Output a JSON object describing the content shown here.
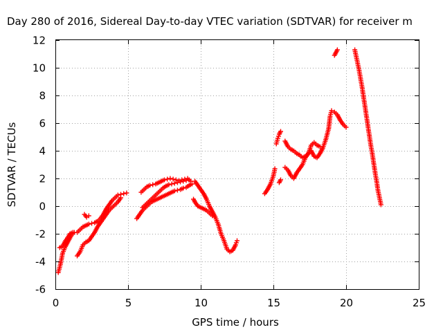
{
  "chart_data": {
    "type": "scatter",
    "title": "Day 280 of 2016, Sidereal Day-to-day VTEC variation (SDTVAR) for receiver m",
    "xlabel": "GPS time / hours",
    "ylabel": "SDTVAR / TECUs",
    "xlim": [
      0,
      25
    ],
    "ylim": [
      -6,
      12
    ],
    "xticks": [
      "0",
      "5",
      "10",
      "15",
      "20",
      "25"
    ],
    "yticks": [
      "-6",
      "-4",
      "-2",
      "0",
      "2",
      "4",
      "6",
      "8",
      "10",
      "12"
    ],
    "grid": true,
    "marker": "plus",
    "color": "#ff0000",
    "series": [
      {
        "name": "SDTVAR",
        "segments": [
          [
            [
              0.2,
              -4.8
            ],
            [
              0.35,
              -4.2
            ],
            [
              0.5,
              -3.4
            ],
            [
              0.7,
              -2.9
            ],
            [
              0.9,
              -2.5
            ],
            [
              1.1,
              -2.1
            ],
            [
              1.3,
              -1.9
            ],
            [
              1.5,
              -1.9
            ],
            [
              1.7,
              -1.7
            ],
            [
              1.9,
              -1.5
            ],
            [
              2.1,
              -1.4
            ],
            [
              2.3,
              -1.3
            ],
            [
              2.5,
              -1.25
            ],
            [
              2.7,
              -1.2
            ],
            [
              2.9,
              -1.1
            ],
            [
              3.1,
              -0.9
            ],
            [
              3.3,
              -0.6
            ],
            [
              3.5,
              -0.2
            ],
            [
              3.7,
              0.1
            ],
            [
              3.9,
              0.4
            ],
            [
              4.1,
              0.6
            ],
            [
              4.3,
              0.8
            ],
            [
              4.5,
              0.85
            ],
            [
              4.7,
              0.9
            ],
            [
              4.9,
              0.95
            ]
          ],
          [
            [
              0.3,
              -3.0
            ],
            [
              0.5,
              -2.9
            ],
            [
              0.7,
              -2.5
            ],
            [
              0.9,
              -2.2
            ],
            [
              1.0,
              -2.0
            ],
            [
              1.2,
              -1.9
            ]
          ],
          [
            [
              2.0,
              -0.6
            ],
            [
              2.15,
              -0.8
            ],
            [
              2.3,
              -0.7
            ]
          ],
          [
            [
              1.5,
              -3.6
            ],
            [
              1.7,
              -3.3
            ],
            [
              1.9,
              -2.8
            ],
            [
              2.1,
              -2.6
            ],
            [
              2.3,
              -2.5
            ],
            [
              2.5,
              -2.2
            ],
            [
              2.7,
              -1.9
            ],
            [
              2.9,
              -1.5
            ],
            [
              3.1,
              -1.2
            ],
            [
              3.3,
              -0.9
            ],
            [
              3.5,
              -0.6
            ],
            [
              3.7,
              -0.3
            ],
            [
              3.9,
              -0.1
            ],
            [
              4.1,
              0.1
            ],
            [
              4.3,
              0.3
            ],
            [
              4.5,
              0.6
            ]
          ],
          [
            [
              5.6,
              -0.9
            ],
            [
              5.8,
              -0.6
            ],
            [
              6.0,
              -0.3
            ],
            [
              6.2,
              -0.1
            ],
            [
              6.4,
              0.1
            ],
            [
              6.6,
              0.3
            ],
            [
              6.8,
              0.4
            ],
            [
              7.0,
              0.5
            ],
            [
              7.2,
              0.6
            ],
            [
              7.4,
              0.7
            ],
            [
              7.6,
              0.8
            ],
            [
              7.8,
              0.9
            ],
            [
              8.0,
              1.0
            ],
            [
              8.2,
              1.1
            ],
            [
              8.4,
              1.15
            ],
            [
              8.6,
              1.2
            ],
            [
              8.8,
              1.3
            ],
            [
              9.0,
              1.35
            ],
            [
              9.2,
              1.5
            ],
            [
              9.4,
              1.6
            ]
          ],
          [
            [
              6.0,
              -0.1
            ],
            [
              6.2,
              0.1
            ],
            [
              6.4,
              0.3
            ],
            [
              6.6,
              0.5
            ],
            [
              6.8,
              0.7
            ],
            [
              7.0,
              0.9
            ],
            [
              7.2,
              1.1
            ],
            [
              7.4,
              1.3
            ],
            [
              7.6,
              1.45
            ],
            [
              7.8,
              1.55
            ],
            [
              8.0,
              1.6
            ],
            [
              8.2,
              1.65
            ],
            [
              8.4,
              1.7
            ],
            [
              8.6,
              1.75
            ],
            [
              8.8,
              1.8
            ],
            [
              9.0,
              1.85
            ],
            [
              9.2,
              1.9
            ]
          ],
          [
            [
              5.9,
              1.0
            ],
            [
              6.1,
              1.2
            ],
            [
              6.3,
              1.4
            ],
            [
              6.5,
              1.5
            ],
            [
              6.7,
              1.55
            ],
            [
              6.9,
              1.6
            ],
            [
              7.1,
              1.7
            ],
            [
              7.3,
              1.8
            ],
            [
              7.5,
              1.9
            ],
            [
              7.7,
              1.95
            ],
            [
              7.9,
              2.0
            ],
            [
              8.1,
              1.95
            ],
            [
              8.3,
              1.9
            ],
            [
              8.5,
              1.85
            ],
            [
              8.7,
              1.9
            ],
            [
              8.9,
              1.95
            ],
            [
              9.1,
              2.0
            ],
            [
              9.3,
              1.8
            ]
          ],
          [
            [
              9.6,
              1.8
            ],
            [
              9.8,
              1.5
            ],
            [
              10.0,
              1.2
            ],
            [
              10.2,
              0.9
            ],
            [
              10.4,
              0.5
            ],
            [
              10.6,
              0.0
            ],
            [
              10.8,
              -0.4
            ],
            [
              11.0,
              -0.8
            ],
            [
              11.2,
              -1.3
            ],
            [
              11.4,
              -2.0
            ],
            [
              11.6,
              -2.5
            ],
            [
              11.8,
              -3.1
            ],
            [
              12.0,
              -3.3
            ],
            [
              12.2,
              -3.2
            ],
            [
              12.4,
              -2.8
            ],
            [
              12.5,
              -2.5
            ]
          ],
          [
            [
              9.5,
              0.5
            ],
            [
              9.6,
              0.3
            ],
            [
              9.8,
              0.0
            ],
            [
              10.0,
              -0.1
            ],
            [
              10.2,
              -0.2
            ],
            [
              10.4,
              -0.3
            ],
            [
              10.6,
              -0.5
            ],
            [
              10.8,
              -0.7
            ]
          ],
          [
            [
              14.4,
              0.9
            ],
            [
              14.6,
              1.2
            ],
            [
              14.8,
              1.6
            ],
            [
              15.0,
              2.2
            ],
            [
              15.1,
              2.7
            ]
          ],
          [
            [
              15.2,
              4.5
            ],
            [
              15.3,
              4.9
            ],
            [
              15.4,
              5.2
            ],
            [
              15.5,
              5.4
            ]
          ],
          [
            [
              15.4,
              1.7
            ],
            [
              15.5,
              1.9
            ]
          ],
          [
            [
              15.8,
              2.8
            ],
            [
              16.0,
              2.6
            ],
            [
              16.2,
              2.2
            ],
            [
              16.4,
              2.0
            ],
            [
              16.6,
              2.4
            ],
            [
              16.8,
              2.7
            ],
            [
              17.0,
              3.0
            ],
            [
              17.2,
              3.5
            ],
            [
              17.4,
              3.8
            ],
            [
              17.6,
              4.0
            ],
            [
              17.8,
              3.6
            ],
            [
              18.0,
              3.5
            ],
            [
              18.2,
              3.8
            ],
            [
              18.4,
              4.2
            ],
            [
              18.6,
              4.8
            ],
            [
              18.8,
              5.6
            ],
            [
              18.9,
              6.5
            ],
            [
              19.0,
              6.9
            ]
          ],
          [
            [
              15.8,
              4.7
            ],
            [
              16.0,
              4.3
            ],
            [
              16.2,
              4.1
            ],
            [
              16.4,
              4.0
            ],
            [
              16.6,
              3.8
            ],
            [
              16.8,
              3.7
            ],
            [
              17.0,
              3.5
            ],
            [
              17.2,
              3.6
            ],
            [
              17.4,
              3.8
            ],
            [
              17.6,
              4.4
            ],
            [
              17.8,
              4.6
            ],
            [
              18.0,
              4.4
            ],
            [
              18.2,
              4.3
            ]
          ],
          [
            [
              19.2,
              6.8
            ],
            [
              19.4,
              6.6
            ],
            [
              19.6,
              6.2
            ],
            [
              19.8,
              5.9
            ],
            [
              20.0,
              5.7
            ]
          ],
          [
            [
              19.2,
              10.9
            ],
            [
              19.3,
              11.1
            ],
            [
              19.4,
              11.3
            ]
          ],
          [
            [
              20.6,
              11.3
            ],
            [
              20.7,
              10.8
            ],
            [
              20.8,
              10.3
            ],
            [
              20.9,
              9.8
            ],
            [
              21.0,
              9.2
            ],
            [
              21.1,
              8.6
            ],
            [
              21.2,
              7.9
            ],
            [
              21.3,
              7.2
            ],
            [
              21.4,
              6.5
            ],
            [
              21.5,
              5.8
            ],
            [
              21.6,
              5.1
            ],
            [
              21.7,
              4.4
            ],
            [
              21.8,
              3.8
            ],
            [
              21.9,
              3.1
            ],
            [
              22.0,
              2.4
            ],
            [
              22.1,
              1.8
            ],
            [
              22.2,
              1.1
            ],
            [
              22.3,
              0.6
            ],
            [
              22.4,
              0.1
            ]
          ]
        ]
      }
    ]
  }
}
